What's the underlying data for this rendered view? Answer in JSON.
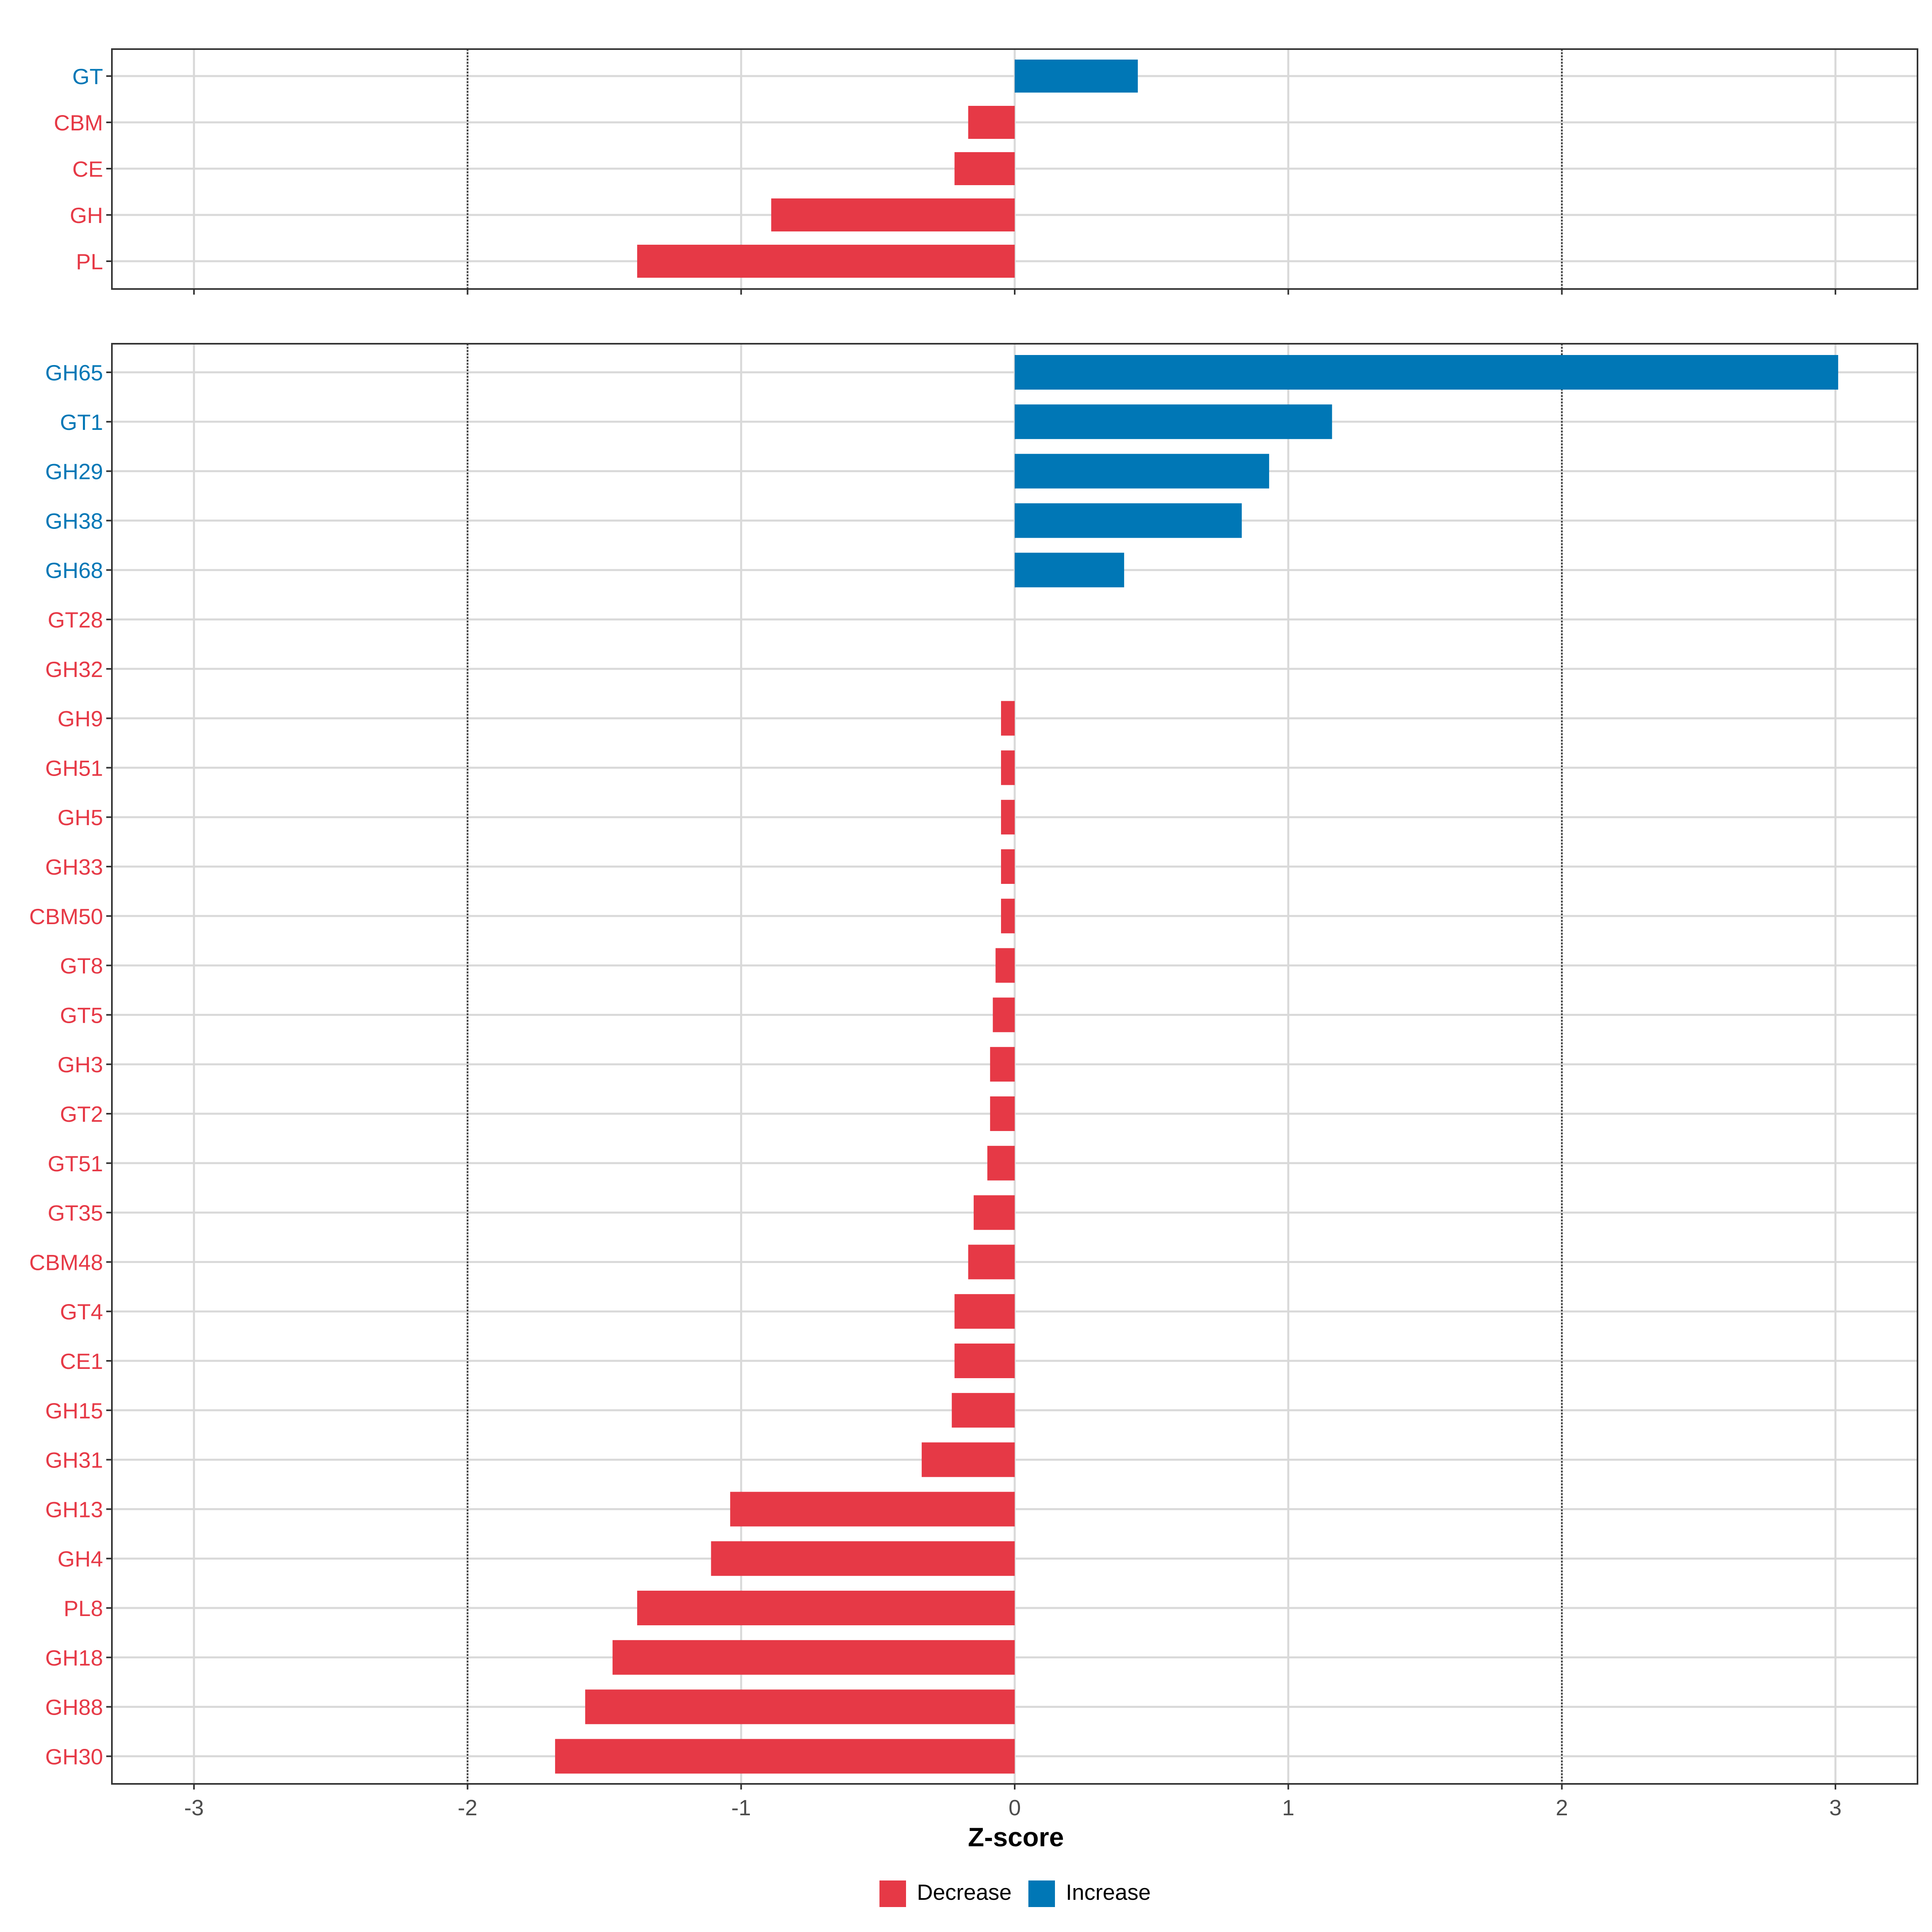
{
  "chart_data": [
    {
      "type": "bar",
      "orientation": "horizontal",
      "panel": "family",
      "categories": [
        "GT",
        "CBM",
        "CE",
        "GH",
        "PL"
      ],
      "values": [
        0.45,
        -0.17,
        -0.22,
        -0.89,
        -1.38
      ],
      "direction": [
        "Increase",
        "Decrease",
        "Decrease",
        "Decrease",
        "Decrease"
      ],
      "xlim": [
        -3.3,
        3.3
      ],
      "xticks": [
        "-3",
        "-2",
        "-1",
        "0",
        "1",
        "2",
        "3"
      ],
      "reference_lines": [
        -2,
        2
      ],
      "grid": true
    },
    {
      "type": "bar",
      "orientation": "horizontal",
      "panel": "subfamily",
      "categories": [
        "GH65",
        "GT1",
        "GH29",
        "GH38",
        "GH68",
        "GT28",
        "GH32",
        "GH9",
        "GH51",
        "GH5",
        "GH33",
        "CBM50",
        "GT8",
        "GT5",
        "GH3",
        "GT2",
        "GT51",
        "GT35",
        "CBM48",
        "GT4",
        "CE1",
        "GH15",
        "GH31",
        "GH13",
        "GH4",
        "PL8",
        "GH18",
        "GH88",
        "GH30"
      ],
      "values": [
        3.01,
        1.16,
        0.93,
        0.83,
        0.4,
        0.0,
        0.0,
        -0.05,
        -0.05,
        -0.05,
        -0.05,
        -0.05,
        -0.07,
        -0.08,
        -0.09,
        -0.09,
        -0.1,
        -0.15,
        -0.17,
        -0.22,
        -0.22,
        -0.23,
        -0.34,
        -1.04,
        -1.11,
        -1.38,
        -1.47,
        -1.57,
        -1.68
      ],
      "direction": [
        "Increase",
        "Increase",
        "Increase",
        "Increase",
        "Increase",
        "Decrease",
        "Decrease",
        "Decrease",
        "Decrease",
        "Decrease",
        "Decrease",
        "Decrease",
        "Decrease",
        "Decrease",
        "Decrease",
        "Decrease",
        "Decrease",
        "Decrease",
        "Decrease",
        "Decrease",
        "Decrease",
        "Decrease",
        "Decrease",
        "Decrease",
        "Decrease",
        "Decrease",
        "Decrease",
        "Decrease",
        "Decrease"
      ],
      "xlim": [
        -3.3,
        3.3
      ],
      "xticks": [
        "-3",
        "-2",
        "-1",
        "0",
        "1",
        "2",
        "3"
      ],
      "reference_lines": [
        -2,
        2
      ],
      "grid": true,
      "xlabel": "Z-score"
    }
  ],
  "legend": {
    "placement": "bottom",
    "items": [
      {
        "label": "Decrease",
        "color": "#E63946"
      },
      {
        "label": "Increase",
        "color": "#0077B6"
      }
    ]
  }
}
